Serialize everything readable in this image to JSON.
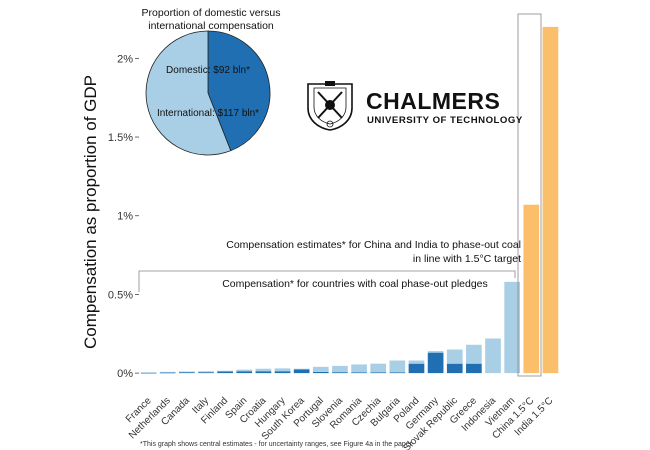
{
  "chart_data": {
    "type": "bar",
    "ylabel": "Compensation as proportion of GDP",
    "ylim": [
      -0.0012,
      0.0232
    ],
    "yticks": [
      {
        "value": 0,
        "label": "0%"
      },
      {
        "value": 0.005,
        "label": "0.5%"
      },
      {
        "value": 0.01,
        "label": "1%"
      },
      {
        "value": 0.015,
        "label": "1.5%"
      },
      {
        "value": 0.02,
        "label": "2%"
      }
    ],
    "categories": [
      "France",
      "Netherlands",
      "Canada",
      "Italy",
      "Finland",
      "Spain",
      "Croatia",
      "Hungary",
      "South Korea",
      "Portugal",
      "Slovenia",
      "Romania",
      "Czechia",
      "Bulgaria",
      "Poland",
      "Germany",
      "Slovak Republic",
      "Greece",
      "Indonesia",
      "Vietnam",
      "China 1.5°C",
      "India 1.5°C"
    ],
    "series": [
      {
        "key": "domestic",
        "values": [
          3e-05,
          4e-05,
          8e-05,
          6e-05,
          0.00012,
          0.00012,
          0.00012,
          0.00012,
          0.00024,
          8e-05,
          6e-05,
          5e-05,
          5e-05,
          5e-05,
          0.0006,
          0.0013,
          0.0006,
          0.0006,
          0,
          0,
          0,
          0
        ]
      },
      {
        "key": "international",
        "values": [
          3e-05,
          4e-05,
          2e-05,
          6e-05,
          3e-05,
          0.0001,
          0.00016,
          0.00018,
          4e-05,
          0.00032,
          0.0004,
          0.0005,
          0.00055,
          0.00075,
          0.0002,
          0.0001,
          0.0009,
          0.0012,
          0.0022,
          0.0058,
          0,
          0
        ]
      },
      {
        "key": "china-india",
        "values": [
          0,
          0,
          0,
          0,
          0,
          0,
          0,
          0,
          0,
          0,
          0,
          0,
          0,
          0,
          0,
          0,
          0,
          0,
          0,
          0,
          0.0107,
          0.022
        ]
      }
    ],
    "colors": {
      "domestic": "#1f6fb2",
      "international": "#a9cfe6",
      "china_india": "#fbbf6b"
    },
    "annotations": {
      "pledges": "Compensation* for countries with coal phase-out pledges",
      "china_india_line1": "Compensation estimates* for China and India to phase-out coal",
      "china_india_line2": "in line with 1.5°C target"
    },
    "pie": {
      "title_line1": "Proportion of domestic versus",
      "title_line2": "international compensation",
      "slices": [
        {
          "label": "Domestic: $92 bln*",
          "value": 92,
          "color": "#1f6fb2"
        },
        {
          "label": "International: $117 bln*",
          "value": 117,
          "color": "#a9cfe6"
        }
      ]
    }
  },
  "logo": {
    "name": "CHALMERS",
    "subtitle": "UNIVERSITY OF TECHNOLOGY"
  },
  "footnote": "*This graph shows central estimates - for uncertainty ranges, see Figure 4a in the paper"
}
